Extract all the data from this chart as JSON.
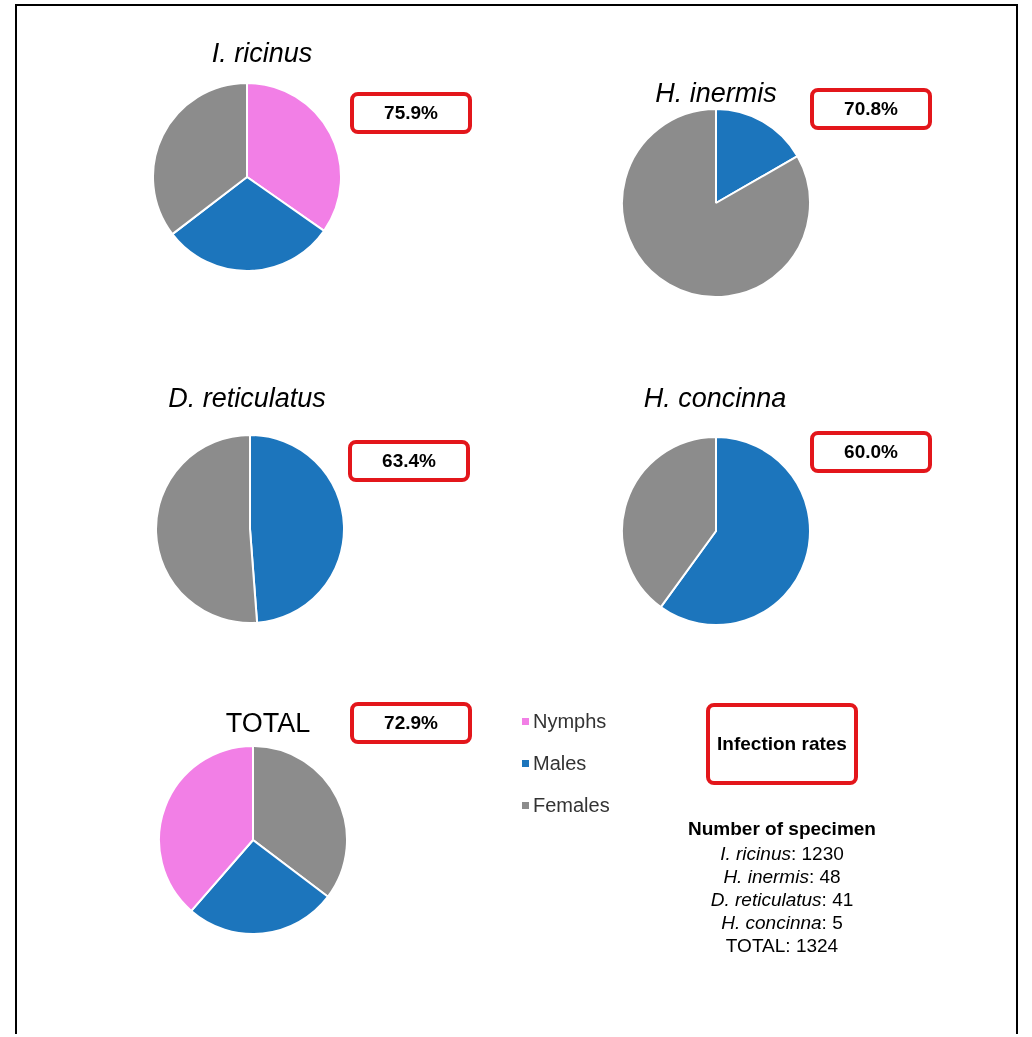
{
  "chart_data": [
    {
      "type": "pie",
      "title": "I. ricinus",
      "categories": [
        null,
        null,
        null
      ],
      "values": [
        34.7,
        29.9,
        35.4
      ],
      "colors": [
        "#f27fe6",
        "#1c75bc",
        "#8c8c8c"
      ],
      "annotations": [
        "75.9%"
      ]
    },
    {
      "type": "pie",
      "title": "H. inermis",
      "categories": [
        null,
        null
      ],
      "values": [
        16.7,
        83.3
      ],
      "colors": [
        "#1c75bc",
        "#8c8c8c"
      ],
      "annotations": [
        "70.8%"
      ]
    },
    {
      "type": "pie",
      "title": "D. reticulatus",
      "categories": [
        null,
        null
      ],
      "values": [
        48.8,
        51.2
      ],
      "colors": [
        "#1c75bc",
        "#8c8c8c"
      ],
      "annotations": [
        "63.4%"
      ]
    },
    {
      "type": "pie",
      "title": "H. concinna",
      "categories": [
        null,
        null
      ],
      "values": [
        60,
        40
      ],
      "colors": [
        "#1c75bc",
        "#8c8c8c"
      ],
      "annotations": [
        "60.0%"
      ]
    },
    {
      "type": "pie",
      "title": "TOTAL",
      "categories": [
        "Females",
        "Males",
        "Nymphs"
      ],
      "values": [
        35.3,
        26.1,
        38.6
      ],
      "colors": [
        "#8c8c8c",
        "#1c75bc",
        "#f27fe6"
      ],
      "annotations": [
        "72.9%"
      ],
      "legend": "right"
    },
    {
      "type": "other",
      "title": "Infection rates",
      "subtitle": "Number of specimen",
      "annotations": [
        "I. ricinus: 1230",
        "H. inermis: 48",
        "D. reticulatus: 41",
        "H. concinna: 5",
        "TOTAL: 1324"
      ]
    }
  ]
}
